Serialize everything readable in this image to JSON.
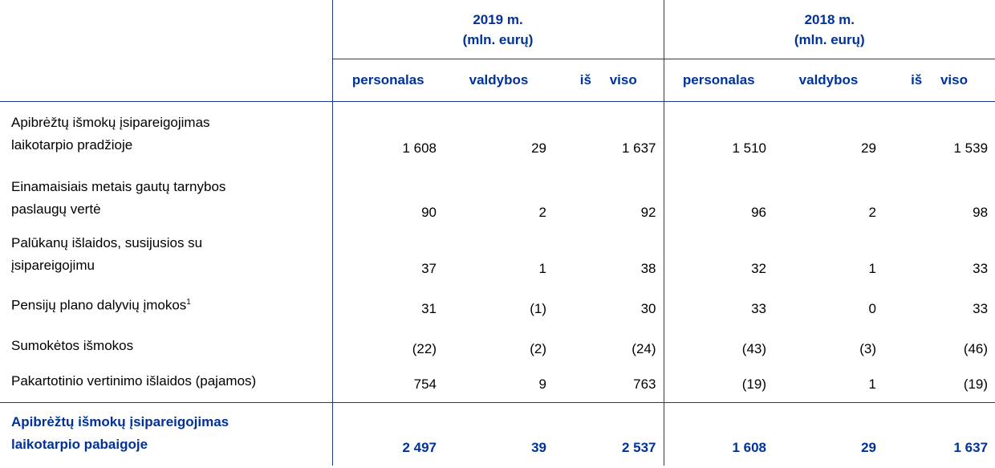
{
  "header": {
    "groups": [
      {
        "year": "2019 m.",
        "unit": "(mln. eurų)"
      },
      {
        "year": "2018 m.",
        "unit": "(mln. eurų)"
      }
    ],
    "columns": [
      "personalas",
      "valdybos",
      "iš viso",
      "personalas",
      "valdybos",
      "iš viso"
    ]
  },
  "rows": [
    {
      "label": [
        "Apibrėžtų išmokų įsipareigojimas",
        "laikotarpio pradžioje"
      ],
      "values": [
        "1 608",
        "29",
        "1 637",
        "1 510",
        "29",
        "1 539"
      ]
    },
    {
      "label": [
        "Einamaisiais metais gautų tarnybos",
        "paslaugų vertė"
      ],
      "values": [
        "90",
        "2",
        "92",
        "96",
        "2",
        "98"
      ]
    },
    {
      "label": [
        "Palūkanų išlaidos, susijusios su",
        "įsipareigojimu"
      ],
      "values": [
        "37",
        "1",
        "38",
        "32",
        "1",
        "33"
      ]
    },
    {
      "label": [
        "Pensijų plano dalyvių įmokos"
      ],
      "footnote": "1",
      "values": [
        "31",
        "(1)",
        "30",
        "33",
        "0",
        "33"
      ]
    },
    {
      "label": [
        "Sumokėtos išmokos"
      ],
      "values": [
        "(22)",
        "(2)",
        "(24)",
        "(43)",
        "(3)",
        "(46)"
      ]
    },
    {
      "label": [
        "Pakartotinio vertinimo išlaidos (pajamos)"
      ],
      "values": [
        "754",
        "9",
        "763",
        "(19)",
        "1",
        "(19)"
      ]
    }
  ],
  "total": {
    "label": [
      "Apibrėžtų išmokų įsipareigojimas",
      "laikotarpio pabaigoje"
    ],
    "values": [
      "2 497",
      "39",
      "2 537",
      "1 608",
      "29",
      "1 637"
    ]
  }
}
